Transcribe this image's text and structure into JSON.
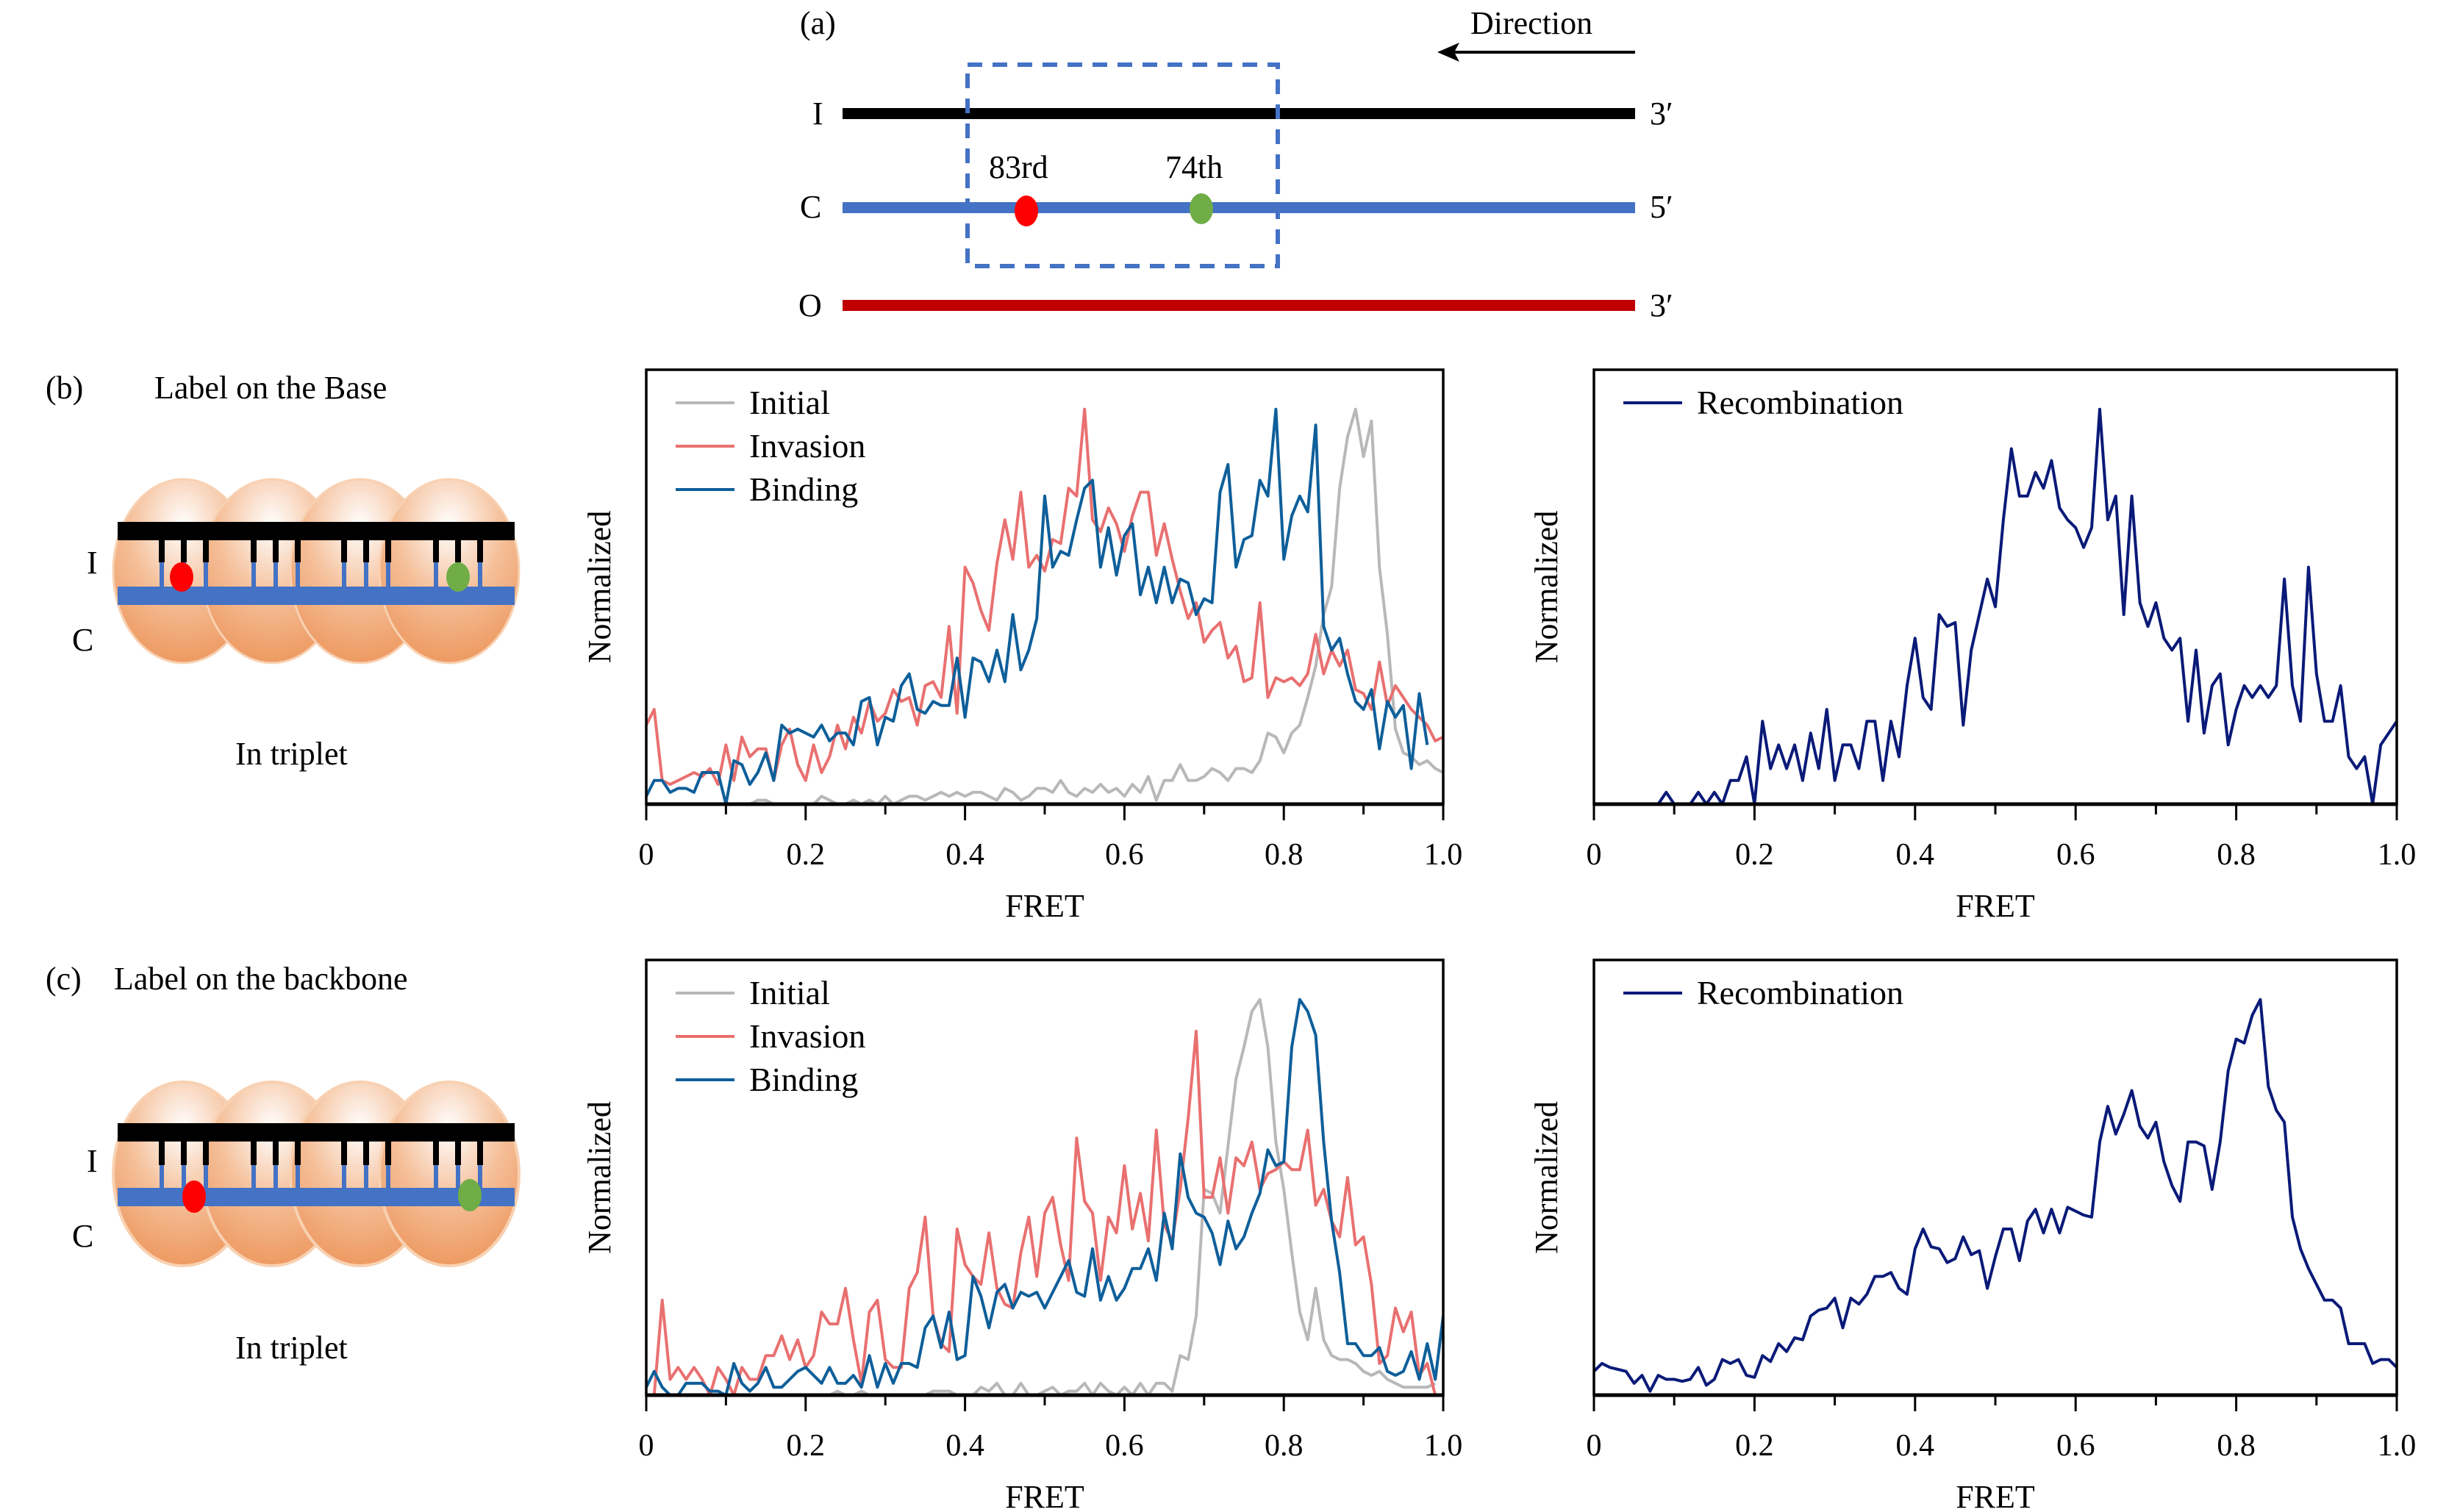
{
  "panel_a": {
    "label": "(a)",
    "direction_label": "Direction",
    "strands": [
      {
        "name": "I",
        "end_label": "3′",
        "color": "#000000"
      },
      {
        "name": "C",
        "end_label": "5′",
        "color": "#4472c4"
      },
      {
        "name": "O",
        "end_label": "3′",
        "color": "#c00000"
      }
    ],
    "markers": [
      {
        "label": "83rd",
        "color": "#ff0000"
      },
      {
        "label": "74th",
        "color": "#70ad47"
      }
    ],
    "box_color": "#4472c4"
  },
  "panel_b": {
    "label": "(b)",
    "title": "Label on the Base",
    "strand_labels": [
      "I",
      "C"
    ],
    "caption": "In triplet"
  },
  "panel_c": {
    "label": "(c)",
    "title": "Label on the backbone",
    "strand_labels": [
      "I",
      "C"
    ],
    "caption": "In triplet"
  },
  "colors": {
    "initial": "#b8b8b8",
    "invasion": "#e97070",
    "binding": "#0e5f9a",
    "recombination": "#0a1a78",
    "sphere_light": "#fbe1cc",
    "sphere_dark": "#ed8b4c",
    "strand_c": "#4472c4",
    "fluor_red": "#ff0000",
    "fluor_green": "#70ad47"
  },
  "chart_data": [
    {
      "id": "b-mid",
      "type": "line",
      "title": "",
      "xlabel": "FRET",
      "ylabel": "Normalized",
      "xlim": [
        0,
        1.0
      ],
      "ylim": [
        0,
        1.1
      ],
      "xticks": [
        0,
        0.2,
        0.4,
        0.6,
        0.8,
        1.0
      ],
      "xtick_labels": [
        "0",
        "0.2",
        "0.4",
        "0.6",
        "0.8",
        "1.0"
      ],
      "minor_xticks": [
        0.1,
        0.3,
        0.5,
        0.7,
        0.9
      ],
      "grid": false,
      "legend": "top-left",
      "x_step": 0.01,
      "series": [
        {
          "name": "Initial",
          "color_key": "initial",
          "values": [
            0,
            0,
            0,
            0,
            0,
            0,
            0,
            0,
            0,
            0,
            0,
            0,
            0,
            0,
            0.01,
            0.01,
            0,
            0,
            0,
            0,
            0,
            0,
            0.02,
            0.01,
            0,
            0,
            0.01,
            0,
            0.01,
            0,
            0.02,
            0,
            0.01,
            0.02,
            0.02,
            0.01,
            0.02,
            0.03,
            0.02,
            0.03,
            0.02,
            0.03,
            0.03,
            0.02,
            0.01,
            0.04,
            0.03,
            0.01,
            0.02,
            0.04,
            0.04,
            0.03,
            0.06,
            0.03,
            0.02,
            0.04,
            0.03,
            0.05,
            0.03,
            0.04,
            0.02,
            0.05,
            0.03,
            0.07,
            0.01,
            0.06,
            0.06,
            0.1,
            0.06,
            0.06,
            0.07,
            0.09,
            0.08,
            0.06,
            0.09,
            0.09,
            0.08,
            0.11,
            0.18,
            0.17,
            0.13,
            0.18,
            0.2,
            0.27,
            0.35,
            0.48,
            0.55,
            0.8,
            0.93,
            1.0,
            0.88,
            0.97,
            0.6,
            0.43,
            0.19,
            0.13,
            0.12,
            0.1,
            0.11,
            0.09,
            0.08
          ]
        },
        {
          "name": "Invasion",
          "color_key": "invasion",
          "values": [
            0.2,
            0.24,
            0.06,
            0.05,
            0.06,
            0.07,
            0.08,
            0.07,
            0.09,
            0.05,
            0.15,
            0.06,
            0.17,
            0.12,
            0.14,
            0.14,
            0.06,
            0.15,
            0.19,
            0.1,
            0.06,
            0.15,
            0.08,
            0.12,
            0.2,
            0.14,
            0.22,
            0.18,
            0.26,
            0.21,
            0.23,
            0.29,
            0.26,
            0.27,
            0.2,
            0.3,
            0.31,
            0.27,
            0.45,
            0.23,
            0.6,
            0.56,
            0.49,
            0.44,
            0.61,
            0.72,
            0.62,
            0.79,
            0.6,
            0.63,
            0.59,
            0.67,
            0.66,
            0.8,
            0.78,
            1.0,
            0.72,
            0.69,
            0.75,
            0.71,
            0.64,
            0.73,
            0.79,
            0.79,
            0.63,
            0.71,
            0.62,
            0.54,
            0.47,
            0.51,
            0.41,
            0.44,
            0.46,
            0.37,
            0.4,
            0.31,
            0.32,
            0.51,
            0.27,
            0.32,
            0.31,
            0.32,
            0.3,
            0.33,
            0.43,
            0.33,
            0.39,
            0.35,
            0.39,
            0.29,
            0.28,
            0.24,
            0.36,
            0.25,
            0.3,
            0.27,
            0.24,
            0.22,
            0.2,
            0.16,
            0.17,
            0.18,
            0.2,
            0.15,
            0.17,
            0.12,
            0.19,
            0.16,
            0.19,
            0.14
          ]
        },
        {
          "name": "Binding",
          "color_key": "binding",
          "values": [
            0.02,
            0.06,
            0.06,
            0.03,
            0.04,
            0.04,
            0.03,
            0.08,
            0.08,
            0.08,
            0,
            0.11,
            0.1,
            0.05,
            0.08,
            0.13,
            0.06,
            0.2,
            0.18,
            0.19,
            0.18,
            0.17,
            0.2,
            0.16,
            0.18,
            0.18,
            0.15,
            0.26,
            0.27,
            0.15,
            0.22,
            0.21,
            0.3,
            0.33,
            0.24,
            0.23,
            0.26,
            0.25,
            0.25,
            0.37,
            0.22,
            0.37,
            0.36,
            0.31,
            0.39,
            0.31,
            0.48,
            0.34,
            0.39,
            0.47,
            0.78,
            0.6,
            0.64,
            0.63,
            0.72,
            0.8,
            0.82,
            0.6,
            0.7,
            0.58,
            0.68,
            0.71,
            0.53,
            0.6,
            0.51,
            0.6,
            0.51,
            0.57,
            0.56,
            0.48,
            0.52,
            0.51,
            0.79,
            0.86,
            0.6,
            0.67,
            0.68,
            0.82,
            0.78,
            1.0,
            0.62,
            0.73,
            0.78,
            0.74,
            0.96,
            0.45,
            0.39,
            0.42,
            0.33,
            0.26,
            0.24,
            0.29,
            0.14,
            0.26,
            0.22,
            0.25,
            0.09,
            0.28,
            0.15
          ]
        },
        {
          "name": "Recombination",
          "color_key": "recombination",
          "hidden": true,
          "values": []
        }
      ]
    },
    {
      "id": "b-right",
      "type": "line",
      "title": "",
      "xlabel": "FRET",
      "ylabel": "Normalized",
      "xlim": [
        0,
        1.0
      ],
      "ylim": [
        0,
        1.1
      ],
      "xticks": [
        0,
        0.2,
        0.4,
        0.6,
        0.8,
        1.0
      ],
      "xtick_labels": [
        "0",
        "0.2",
        "0.4",
        "0.6",
        "0.8",
        "1.0"
      ],
      "minor_xticks": [
        0.1,
        0.3,
        0.5,
        0.7,
        0.9
      ],
      "grid": false,
      "legend": "top-left",
      "x_step": 0.01,
      "series": [
        {
          "name": "Recombination",
          "color_key": "recombination",
          "values": [
            0,
            0,
            0,
            0,
            0,
            0,
            0,
            0,
            0,
            0.03,
            0,
            0,
            0,
            0.03,
            0,
            0.03,
            0,
            0.06,
            0.06,
            0.12,
            0,
            0.21,
            0.09,
            0.15,
            0.09,
            0.15,
            0.06,
            0.18,
            0.09,
            0.24,
            0.06,
            0.15,
            0.15,
            0.09,
            0.21,
            0.21,
            0.06,
            0.21,
            0.12,
            0.3,
            0.42,
            0.27,
            0.24,
            0.48,
            0.45,
            0.46,
            0.2,
            0.39,
            0.48,
            0.57,
            0.5,
            0.72,
            0.9,
            0.78,
            0.78,
            0.84,
            0.8,
            0.87,
            0.75,
            0.72,
            0.7,
            0.65,
            0.7,
            1.0,
            0.72,
            0.78,
            0.48,
            0.78,
            0.51,
            0.45,
            0.51,
            0.42,
            0.39,
            0.42,
            0.21,
            0.39,
            0.18,
            0.3,
            0.33,
            0.15,
            0.24,
            0.3,
            0.27,
            0.3,
            0.27,
            0.3,
            0.57,
            0.3,
            0.21,
            0.6,
            0.33,
            0.21,
            0.21,
            0.3,
            0.12,
            0.09,
            0.12,
            0,
            0.15,
            0.18,
            0.21,
            0.06
          ]
        }
      ]
    },
    {
      "id": "c-mid",
      "type": "line",
      "title": "",
      "xlabel": "FRET",
      "ylabel": "Normalized",
      "xlim": [
        0,
        1.0
      ],
      "ylim": [
        0,
        1.1
      ],
      "xticks": [
        0,
        0.2,
        0.4,
        0.6,
        0.8,
        1.0
      ],
      "xtick_labels": [
        "0",
        "0.2",
        "0.4",
        "0.6",
        "0.8",
        "1.0"
      ],
      "minor_xticks": [
        0.1,
        0.3,
        0.5,
        0.7,
        0.9
      ],
      "grid": false,
      "legend": "top-left",
      "x_step": 0.01,
      "series": [
        {
          "name": "Initial",
          "color_key": "initial",
          "values": [
            0,
            0,
            0,
            0,
            0,
            0,
            0,
            0,
            0,
            0,
            0,
            0,
            0,
            0,
            0,
            0,
            0,
            0,
            0,
            0,
            0,
            0,
            0,
            0,
            0.01,
            0,
            0,
            0.01,
            0,
            0,
            0,
            0,
            0,
            0,
            0,
            0,
            0.01,
            0.01,
            0.01,
            0,
            0,
            0,
            0.02,
            0.01,
            0.03,
            0,
            0,
            0.03,
            0,
            0,
            0.01,
            0.02,
            0,
            0.01,
            0.01,
            0.03,
            0,
            0.03,
            0.01,
            0,
            0.02,
            0,
            0.03,
            0,
            0.03,
            0.03,
            0.01,
            0.1,
            0.09,
            0.2,
            0.52,
            0.51,
            0.46,
            0.63,
            0.8,
            0.88,
            0.97,
            1.0,
            0.88,
            0.64,
            0.52,
            0.36,
            0.21,
            0.14,
            0.27,
            0.14,
            0.1,
            0.09,
            0.09,
            0.08,
            0.06,
            0.05,
            0.06,
            0.04,
            0.03,
            0.02,
            0.02,
            0.02,
            0.02,
            0.03
          ]
        },
        {
          "name": "Invasion",
          "color_key": "invasion",
          "values": [
            0,
            0,
            0.24,
            0.04,
            0.07,
            0.04,
            0.07,
            0.04,
            0,
            0.07,
            0.04,
            0,
            0.07,
            0.04,
            0.04,
            0.1,
            0.1,
            0.15,
            0.09,
            0.14,
            0.07,
            0.1,
            0.21,
            0.18,
            0.18,
            0.27,
            0.14,
            0.03,
            0.21,
            0.24,
            0.09,
            0.07,
            0.07,
            0.27,
            0.31,
            0.45,
            0.2,
            0.13,
            0.11,
            0.42,
            0.33,
            0.3,
            0.28,
            0.41,
            0.27,
            0.23,
            0.22,
            0.36,
            0.45,
            0.3,
            0.46,
            0.5,
            0.38,
            0.29,
            0.65,
            0.49,
            0.46,
            0.29,
            0.45,
            0.41,
            0.58,
            0.42,
            0.51,
            0.39,
            0.67,
            0.43,
            0.39,
            0.52,
            0.7,
            0.92,
            0.5,
            0.5,
            0.6,
            0.46,
            0.6,
            0.58,
            0.64,
            0.52,
            0.56,
            0.57,
            0.59,
            0.57,
            0.57,
            0.67,
            0.48,
            0.52,
            0.44,
            0.4,
            0.55,
            0.38,
            0.4,
            0.28,
            0.08,
            0.1,
            0.22,
            0.16,
            0.21,
            0.05,
            0.08,
            0,
            0
          ]
        },
        {
          "name": "Binding",
          "color_key": "binding",
          "values": [
            0.02,
            0.06,
            0.02,
            0,
            0,
            0.03,
            0.03,
            0.03,
            0.01,
            0.01,
            0,
            0.08,
            0.03,
            0.01,
            0.03,
            0.07,
            0.02,
            0.02,
            0.04,
            0.06,
            0.07,
            0.05,
            0.03,
            0.07,
            0.03,
            0.03,
            0.05,
            0.02,
            0.1,
            0.02,
            0.08,
            0.03,
            0.08,
            0.08,
            0.07,
            0.17,
            0.2,
            0.12,
            0.21,
            0.09,
            0.1,
            0.3,
            0.25,
            0.17,
            0.26,
            0.28,
            0.22,
            0.26,
            0.25,
            0.26,
            0.22,
            0.26,
            0.3,
            0.34,
            0.26,
            0.25,
            0.37,
            0.24,
            0.3,
            0.24,
            0.27,
            0.32,
            0.32,
            0.37,
            0.29,
            0.46,
            0.37,
            0.61,
            0.5,
            0.46,
            0.45,
            0.41,
            0.33,
            0.44,
            0.37,
            0.4,
            0.46,
            0.51,
            0.62,
            0.58,
            0.59,
            0.88,
            1.0,
            0.97,
            0.91,
            0.64,
            0.44,
            0.31,
            0.13,
            0.13,
            0.1,
            0.1,
            0.12,
            0.06,
            0.05,
            0.06,
            0.11,
            0.04,
            0.13,
            0.04,
            0.2,
            0
          ]
        },
        {
          "name": "Recombination",
          "color_key": "recombination",
          "hidden": true,
          "values": []
        }
      ]
    },
    {
      "id": "c-right",
      "type": "line",
      "title": "",
      "xlabel": "FRET",
      "ylabel": "Normalized",
      "xlim": [
        0,
        1.0
      ],
      "ylim": [
        0,
        1.1
      ],
      "xticks": [
        0,
        0.2,
        0.4,
        0.6,
        0.8,
        1.0
      ],
      "xtick_labels": [
        "0",
        "0.2",
        "0.4",
        "0.6",
        "0.8",
        "1.0"
      ],
      "minor_xticks": [
        0.1,
        0.3,
        0.5,
        0.7,
        0.9
      ],
      "grid": false,
      "legend": "top-left",
      "x_step": 0.01,
      "series": [
        {
          "name": "Recombination",
          "color_key": "recombination",
          "values": [
            0.06,
            0.08,
            0.07,
            0.065,
            0.06,
            0.03,
            0.05,
            0.01,
            0.05,
            0.04,
            0.04,
            0.035,
            0.04,
            0.07,
            0.025,
            0.04,
            0.09,
            0.08,
            0.09,
            0.05,
            0.045,
            0.1,
            0.085,
            0.13,
            0.11,
            0.145,
            0.14,
            0.2,
            0.215,
            0.22,
            0.245,
            0.17,
            0.245,
            0.23,
            0.255,
            0.3,
            0.3,
            0.31,
            0.27,
            0.255,
            0.37,
            0.42,
            0.375,
            0.37,
            0.335,
            0.345,
            0.4,
            0.355,
            0.365,
            0.27,
            0.35,
            0.42,
            0.42,
            0.34,
            0.44,
            0.47,
            0.41,
            0.47,
            0.41,
            0.475,
            0.465,
            0.455,
            0.45,
            0.64,
            0.73,
            0.66,
            0.71,
            0.77,
            0.68,
            0.65,
            0.69,
            0.59,
            0.53,
            0.49,
            0.64,
            0.64,
            0.63,
            0.52,
            0.64,
            0.82,
            0.9,
            0.89,
            0.96,
            1.0,
            0.78,
            0.72,
            0.69,
            0.45,
            0.37,
            0.32,
            0.28,
            0.24,
            0.24,
            0.22,
            0.13,
            0.13,
            0.13,
            0.08,
            0.09,
            0.09,
            0.07
          ]
        }
      ]
    }
  ]
}
